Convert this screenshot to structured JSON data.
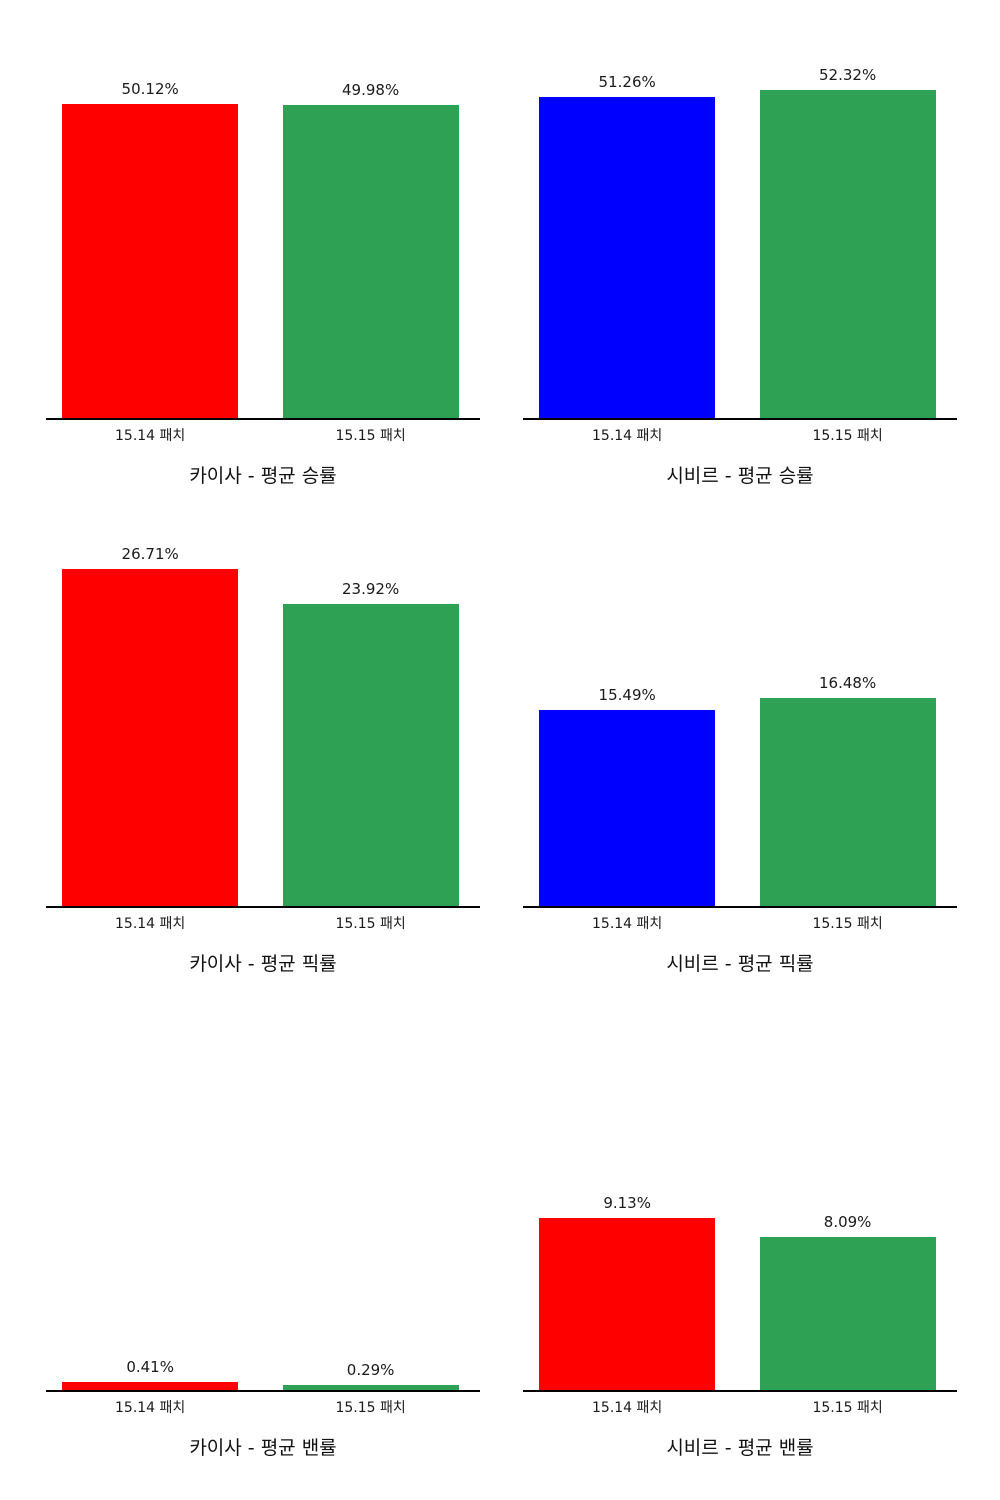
{
  "page": {
    "background": "#ffffff",
    "text_color": "#1a1a1a",
    "axis_color": "#000000"
  },
  "chart_data": [
    {
      "type": "bar",
      "title": "카이사 - 평균 승률",
      "categories": [
        "15.14 패치",
        "15.15 패치"
      ],
      "values": [
        50.12,
        49.98
      ],
      "value_labels": [
        "50.12%",
        "49.98%"
      ],
      "colors": [
        "#ff0000",
        "#2ea155"
      ],
      "ylim": [
        0,
        59
      ],
      "grid": false,
      "legend": "none"
    },
    {
      "type": "bar",
      "title": "시비르 - 평균 승률",
      "categories": [
        "15.14 패치",
        "15.15 패치"
      ],
      "values": [
        51.26,
        52.32
      ],
      "value_labels": [
        "51.26%",
        "52.32%"
      ],
      "colors": [
        "#0000ff",
        "#2ea155"
      ],
      "ylim": [
        0,
        59
      ],
      "grid": false,
      "legend": "none"
    },
    {
      "type": "bar",
      "title": "카이사 - 평균 픽률",
      "categories": [
        "15.14 패치",
        "15.15 패치"
      ],
      "values": [
        26.71,
        23.92
      ],
      "value_labels": [
        "26.71%",
        "23.92%"
      ],
      "colors": [
        "#ff0000",
        "#2ea155"
      ],
      "ylim": [
        0,
        29.3
      ],
      "grid": false,
      "legend": "none"
    },
    {
      "type": "bar",
      "title": "시비르 - 평균 픽률",
      "categories": [
        "15.14 패치",
        "15.15 패치"
      ],
      "values": [
        15.49,
        16.48
      ],
      "value_labels": [
        "15.49%",
        "16.48%"
      ],
      "colors": [
        "#0000ff",
        "#2ea155"
      ],
      "ylim": [
        0,
        29.3
      ],
      "grid": false,
      "legend": "none"
    },
    {
      "type": "bar",
      "title": "카이사 - 평균 밴률",
      "categories": [
        "15.14 패치",
        "15.15 패치"
      ],
      "values": [
        0.41,
        0.29
      ],
      "value_labels": [
        "0.41%",
        "0.29%"
      ],
      "colors": [
        "#ff0000",
        "#2ea155"
      ],
      "ylim": [
        0,
        19.6
      ],
      "grid": false,
      "legend": "none"
    },
    {
      "type": "bar",
      "title": "시비르 - 평균 밴률",
      "categories": [
        "15.14 패치",
        "15.15 패치"
      ],
      "values": [
        9.13,
        8.09
      ],
      "value_labels": [
        "9.13%",
        "8.09%"
      ],
      "colors": [
        "#ff0000",
        "#2ea155"
      ],
      "ylim": [
        0,
        19.6
      ],
      "grid": false,
      "legend": "none"
    }
  ]
}
